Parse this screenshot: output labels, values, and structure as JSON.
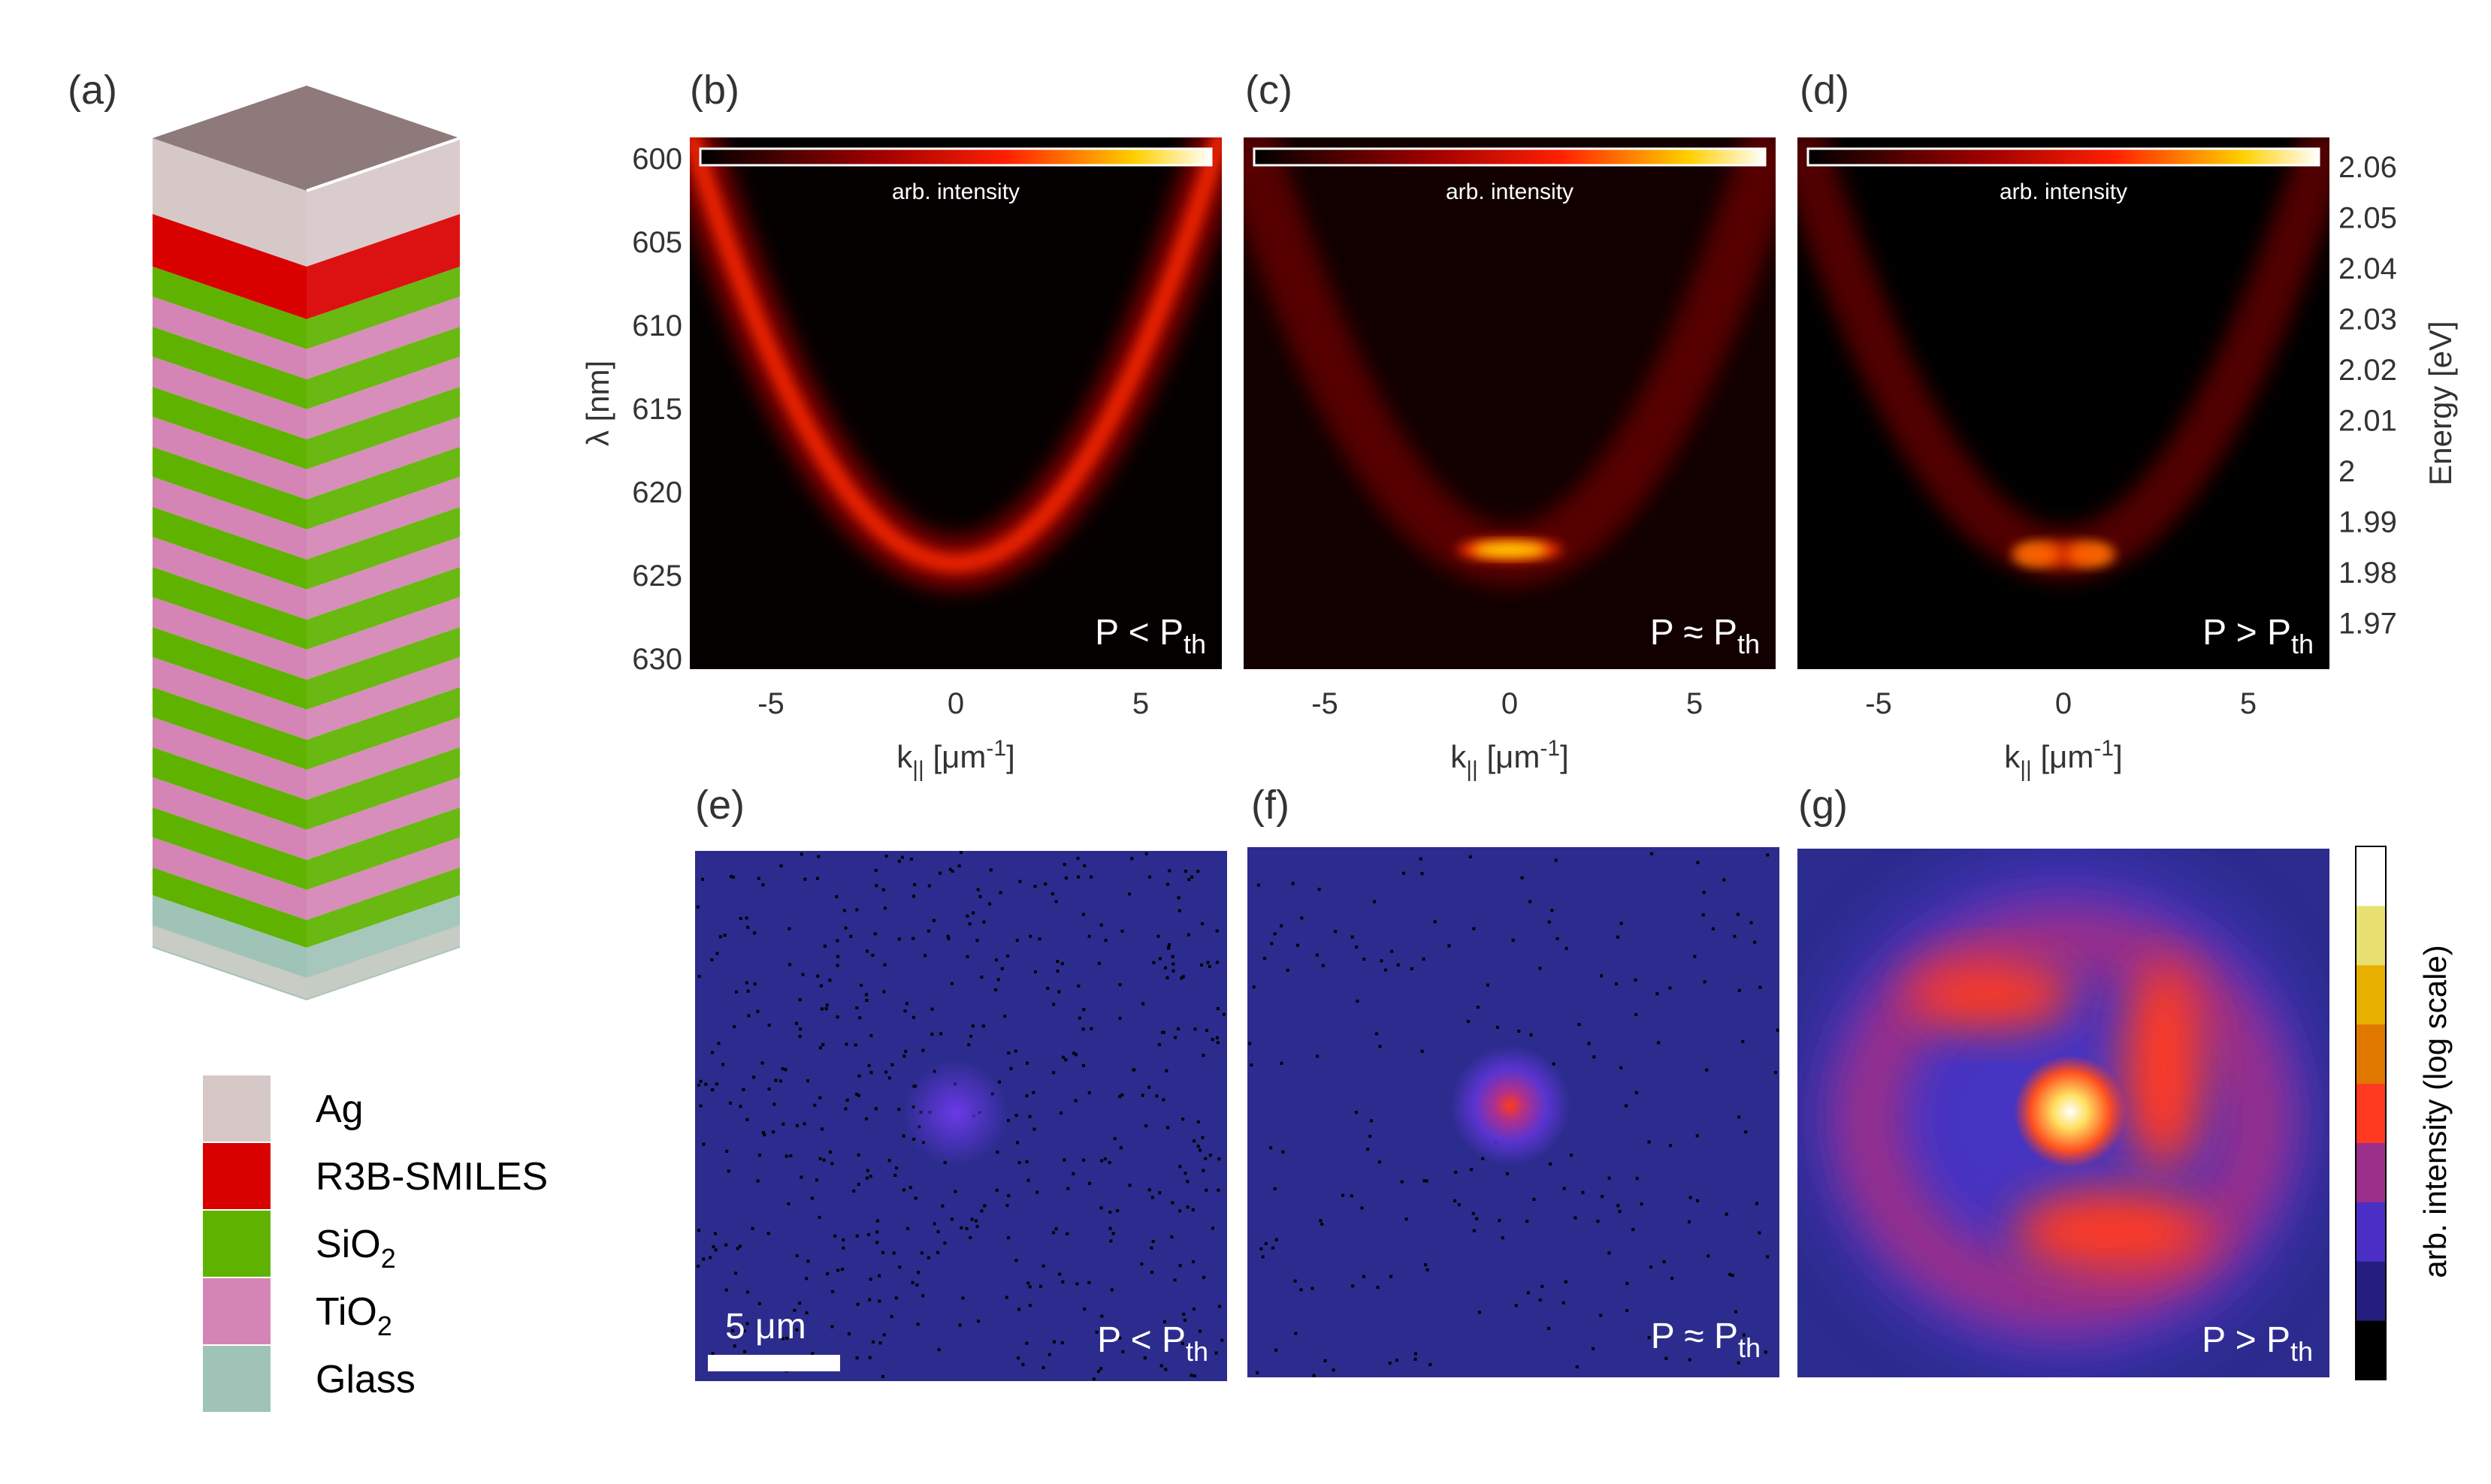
{
  "panel_labels": [
    "(a)",
    "(b)",
    "(c)",
    "(d)",
    "(e)",
    "(f)",
    "(g)"
  ],
  "legend": [
    {
      "label": "Ag",
      "sub": "",
      "color": "#d7c8c8"
    },
    {
      "label": "R3B-SMILES",
      "sub": "",
      "color": "#d90000"
    },
    {
      "label": "SiO",
      "sub": "2",
      "color": "#5fb300"
    },
    {
      "label": "TiO",
      "sub": "2",
      "color": "#d585b5"
    },
    {
      "label": "Glass",
      "sub": "",
      "color": "#9fc3b6"
    }
  ],
  "dispersion": {
    "colorbar_label": "arb. intensity",
    "x_ticks": [
      "-5",
      "0",
      "5"
    ],
    "x_label": "k",
    "x_label_sub": "||",
    "x_label_unit": "[μm",
    "x_label_sup": "-1",
    "x_label_close": "]",
    "y_left_label": "λ [nm]",
    "y_left_ticks": [
      "600",
      "605",
      "610",
      "615",
      "620",
      "625",
      "630"
    ],
    "y_right_label": "Energy [eV]",
    "y_right_ticks": [
      "2.06",
      "2.05",
      "2.04",
      "2.03",
      "2.02",
      "2.01",
      "2",
      "1.99",
      "1.98",
      "1.97"
    ]
  },
  "power_labels": [
    {
      "p": "P",
      "rel": "<",
      "sub": "th"
    },
    {
      "p": "P",
      "rel": "≈",
      "sub": "th"
    },
    {
      "p": "P",
      "rel": ">",
      "sub": "th"
    }
  ],
  "real_space": {
    "scalebar_label": "5 μm",
    "colorbar_label": "arb. intensity (log scale)",
    "colorbar_colors": [
      "#000000",
      "#241e80",
      "#4a2ec6",
      "#9a2f8a",
      "#ff3a20",
      "#e07800",
      "#e8b000",
      "#e8e070",
      "#ffffff"
    ],
    "background_color": "#2c2c8e"
  },
  "colors": {
    "ag": "#d7c8c8",
    "r3b": "#d90000",
    "sio2": "#5fb300",
    "tio2": "#d585b5",
    "glass": "#9fc3b6"
  }
}
